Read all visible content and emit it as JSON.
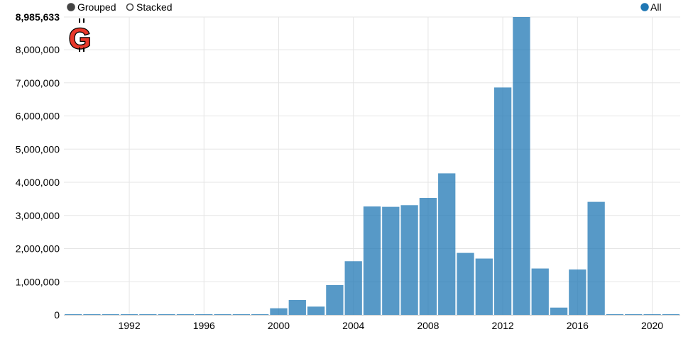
{
  "controls": {
    "grouped_label": "Grouped",
    "stacked_label": "Stacked",
    "legend_label": "All",
    "selected_mode": "Grouped"
  },
  "logo": {
    "letter": "G",
    "accent": "#e8382a"
  },
  "colors": {
    "bar": "#1f77b4",
    "grid": "#e5e5e5"
  },
  "chart_data": {
    "type": "bar",
    "title": "",
    "xlabel": "",
    "ylabel": "",
    "x": [
      1989,
      1990,
      1991,
      1992,
      1993,
      1994,
      1995,
      1996,
      1997,
      1998,
      1999,
      2000,
      2001,
      2002,
      2003,
      2004,
      2005,
      2006,
      2007,
      2008,
      2009,
      2010,
      2011,
      2012,
      2013,
      2014,
      2015,
      2016,
      2017,
      2018,
      2019,
      2020,
      2021
    ],
    "series": [
      {
        "name": "All",
        "values": [
          5000,
          5000,
          5000,
          5000,
          5000,
          5000,
          5000,
          5000,
          5000,
          5000,
          5000,
          200000,
          450000,
          250000,
          900000,
          1620000,
          3270000,
          3260000,
          3310000,
          3530000,
          4270000,
          1870000,
          1700000,
          6860000,
          8985633,
          1400000,
          220000,
          1370000,
          3410000,
          5000,
          5000,
          5000,
          5000
        ]
      }
    ],
    "ylim": [
      0,
      8985633
    ],
    "yticks": [
      0,
      1000000,
      2000000,
      3000000,
      4000000,
      5000000,
      6000000,
      7000000,
      8000000,
      8985633
    ],
    "ytick_labels": [
      "0",
      "1,000,000",
      "2,000,000",
      "3,000,000",
      "4,000,000",
      "5,000,000",
      "6,000,000",
      "7,000,000",
      "8,000,000",
      "8,985,633"
    ],
    "xticks": [
      1992,
      1996,
      2000,
      2004,
      2008,
      2012,
      2016,
      2020
    ],
    "xtick_labels": [
      "1992",
      "1996",
      "2000",
      "2004",
      "2008",
      "2012",
      "2016",
      "2020"
    ],
    "grid": true,
    "legend": "top-right"
  }
}
